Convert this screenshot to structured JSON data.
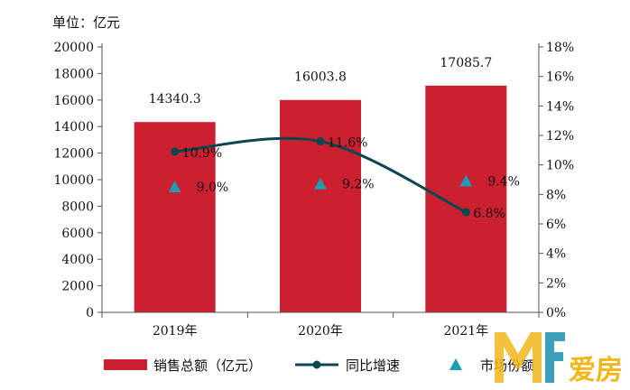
{
  "chart_data": {
    "type": "bar",
    "title": "",
    "unit_label": "单位：亿元",
    "categories": [
      "2019年",
      "2020年",
      "2021年"
    ],
    "series": [
      {
        "name": "销售总额（亿元）",
        "type": "bar",
        "axis": "left",
        "color": "#cc1f2f",
        "values": [
          14340.3,
          16003.8,
          17085.7
        ],
        "labels": [
          "14340.3",
          "16003.8",
          "17085.7"
        ]
      },
      {
        "name": "同比增速",
        "type": "line",
        "axis": "right",
        "color": "#0b4750",
        "values": [
          10.9,
          11.6,
          6.8
        ],
        "labels": [
          "10.9%",
          "11.6%",
          "6.8%"
        ]
      },
      {
        "name": "市场份额",
        "type": "scatter",
        "marker": "triangle",
        "axis": "right",
        "color": "#1f9bb2",
        "values": [
          9.0,
          9.2,
          9.4
        ],
        "labels": [
          "9.0%",
          "9.2%",
          "9.4%"
        ]
      }
    ],
    "y_left": {
      "min": 0,
      "max": 20000,
      "step": 2000,
      "ticks": [
        "0",
        "2000",
        "4000",
        "6000",
        "8000",
        "10000",
        "12000",
        "14000",
        "16000",
        "18000",
        "20000"
      ]
    },
    "y_right": {
      "min": 0,
      "max": 18,
      "step": 2,
      "ticks": [
        "0%",
        "2%",
        "4%",
        "6%",
        "8%",
        "10%",
        "12%",
        "14%",
        "16%",
        "18%"
      ]
    },
    "grid": false,
    "legend_position": "bottom"
  },
  "watermark": {
    "text": "爱房"
  }
}
